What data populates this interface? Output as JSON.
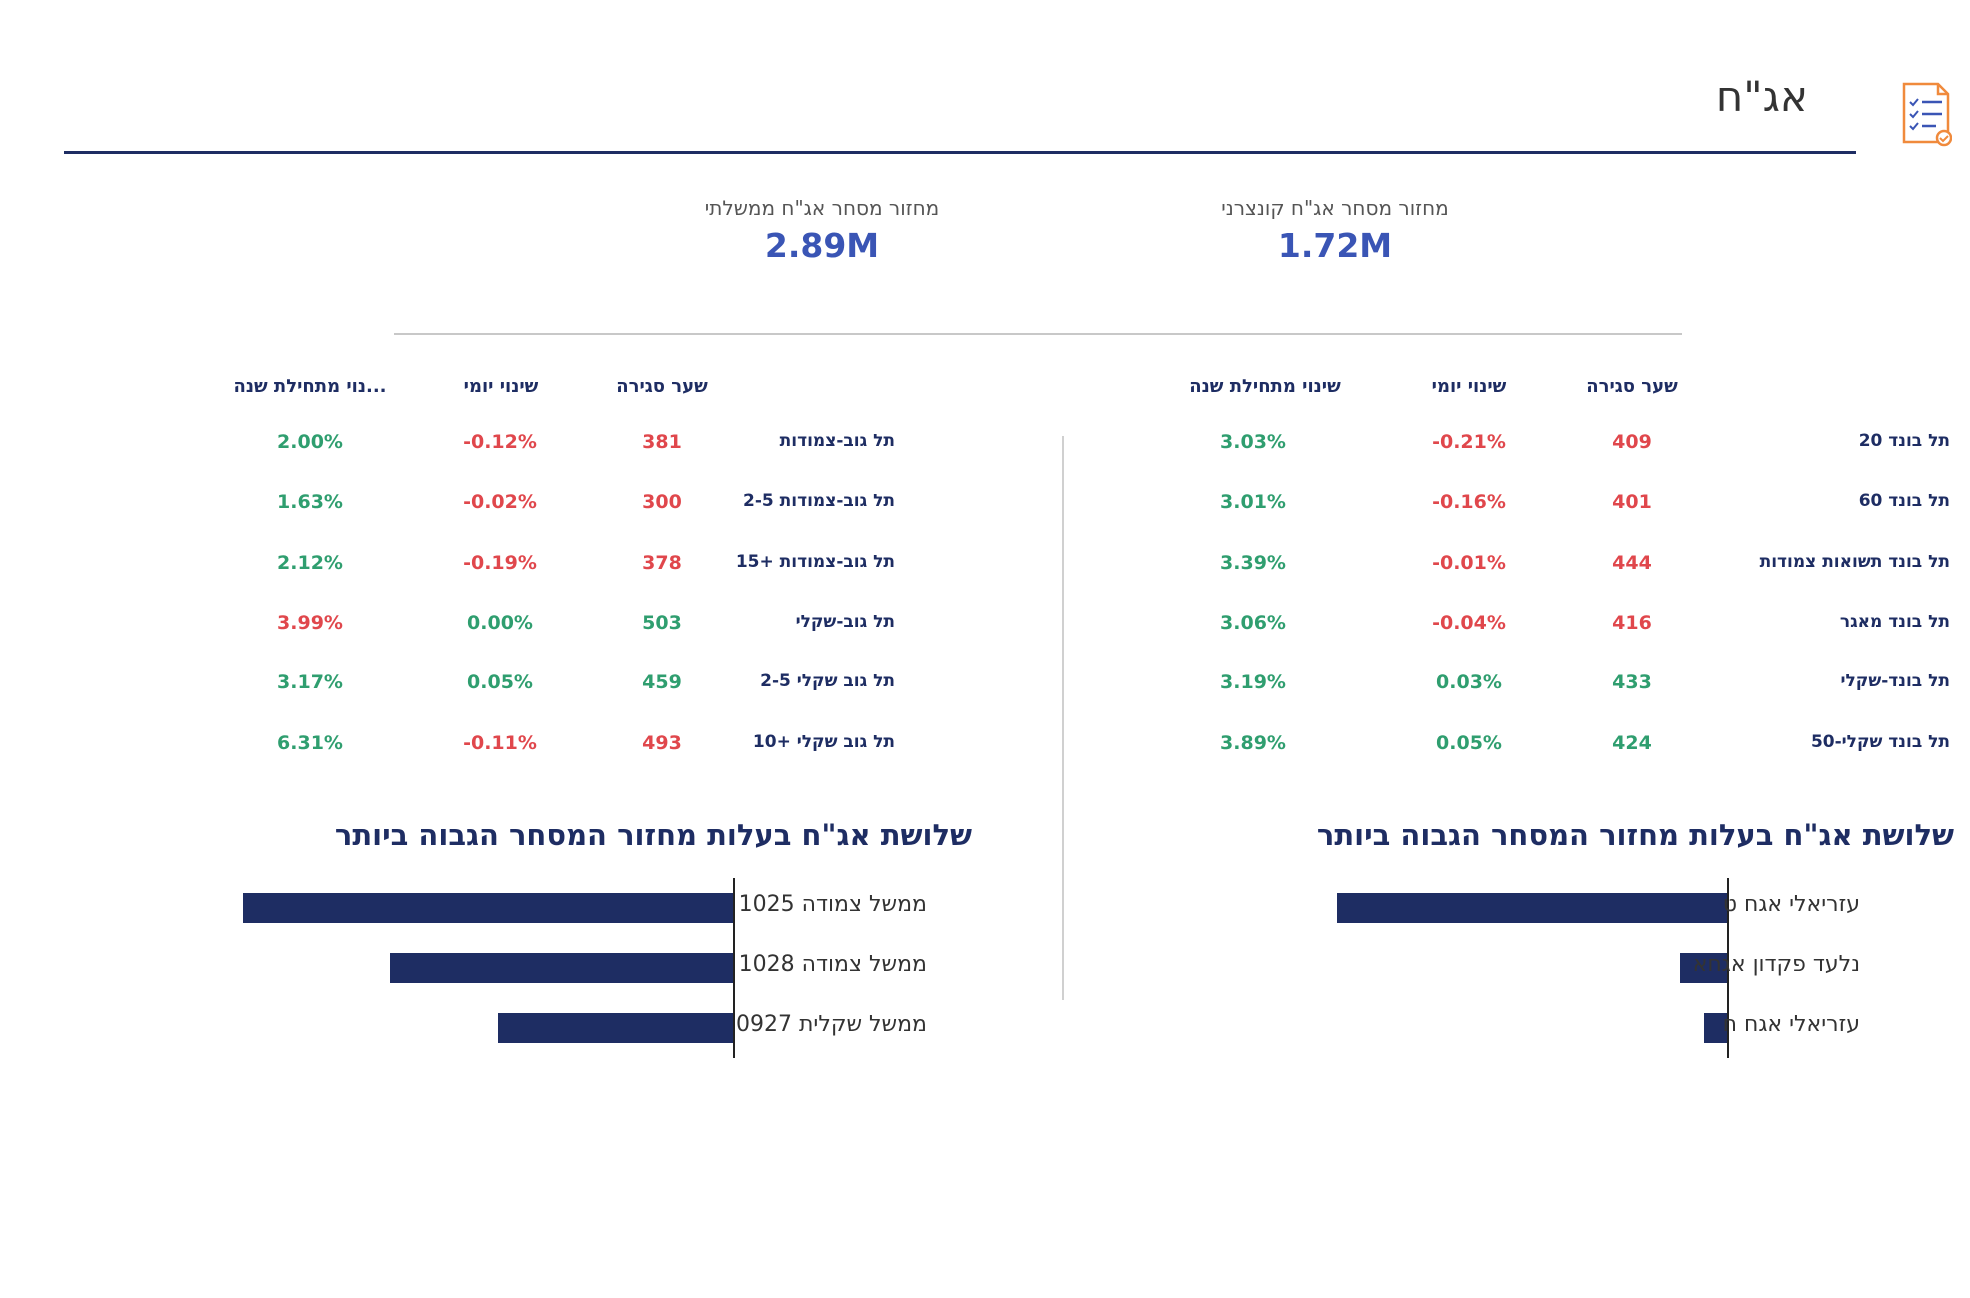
{
  "page": {
    "title": "אג\"ח"
  },
  "kpis": {
    "corporate": {
      "label": "מחזור מסחר אג\"ח קונצרני",
      "value": "1.72M"
    },
    "government": {
      "label": "מחזור מסחר אג\"ח ממשלתי",
      "value": "2.89M"
    }
  },
  "right_table": {
    "headers": {
      "close": "שער סגירה",
      "daily": "שינוי יומי",
      "ytd": "שינוי מתחילת שנה"
    },
    "rows": [
      {
        "name": "תל בונד 20",
        "close": "409",
        "daily": "-0.21%",
        "ytd": "3.03%"
      },
      {
        "name": "תל בונד 60",
        "close": "401",
        "daily": "-0.16%",
        "ytd": "3.01%"
      },
      {
        "name": "תל בונד תשואות צמודות",
        "close": "444",
        "daily": "-0.01%",
        "ytd": "3.39%"
      },
      {
        "name": "תל בונד מאגר",
        "close": "416",
        "daily": "-0.04%",
        "ytd": "3.06%"
      },
      {
        "name": "תל בונד-שקלי",
        "close": "433",
        "daily": "0.03%",
        "ytd": "3.19%"
      },
      {
        "name": "תל בונד שקלי-50",
        "close": "424",
        "daily": "0.05%",
        "ytd": "3.89%"
      }
    ]
  },
  "left_table": {
    "headers": {
      "close": "שער סגירה",
      "daily": "שינוי יומי",
      "ytd": "...נוי מתחילת שנה"
    },
    "rows": [
      {
        "name": "תל גוב-צמודות",
        "close": "381",
        "daily": "-0.12%",
        "ytd": "2.00%"
      },
      {
        "name": "תל גוב-צמודות 2-5",
        "close": "300",
        "daily": "-0.02%",
        "ytd": "1.63%"
      },
      {
        "name": "תל גוב-צמודות +15",
        "close": "378",
        "daily": "-0.19%",
        "ytd": "2.12%"
      },
      {
        "name": "תל גוב-שקלי",
        "close": "503",
        "daily": "0.00%",
        "ytd": "3.99%"
      },
      {
        "name": "תל גוב שקלי 2-5",
        "close": "459",
        "daily": "0.05%",
        "ytd": "3.17%"
      },
      {
        "name": "תל גוב שקלי +10",
        "close": "493",
        "daily": "-0.11%",
        "ytd": "6.31%"
      }
    ]
  },
  "colors": {
    "positive": "#2f9e6f",
    "negative": "#e0474c",
    "bar": "#1e2d63",
    "accent": "#3a55b5"
  },
  "icons": {
    "header": "document-checklist-icon"
  },
  "chart_data": [
    {
      "type": "bar",
      "orientation": "horizontal",
      "title": "שלושת אג\"ח בעלות מחזור המסחר הגבוה ביותר",
      "categories": [
        "עזריאלי אגח ט",
        "נלעד פקדון אגחא",
        "עזריאלי אגח ח"
      ],
      "values": [
        100,
        12,
        6
      ],
      "grid": false
    },
    {
      "type": "bar",
      "orientation": "horizontal",
      "title": "שלושת אג\"ח בעלות מחזור המסחר הגבוה ביותר",
      "categories": [
        "ממשל צמודה 1025",
        "ממשל צמודה 1028",
        "ממשל שקלית 0927"
      ],
      "values": [
        100,
        70,
        48
      ],
      "grid": false
    }
  ]
}
